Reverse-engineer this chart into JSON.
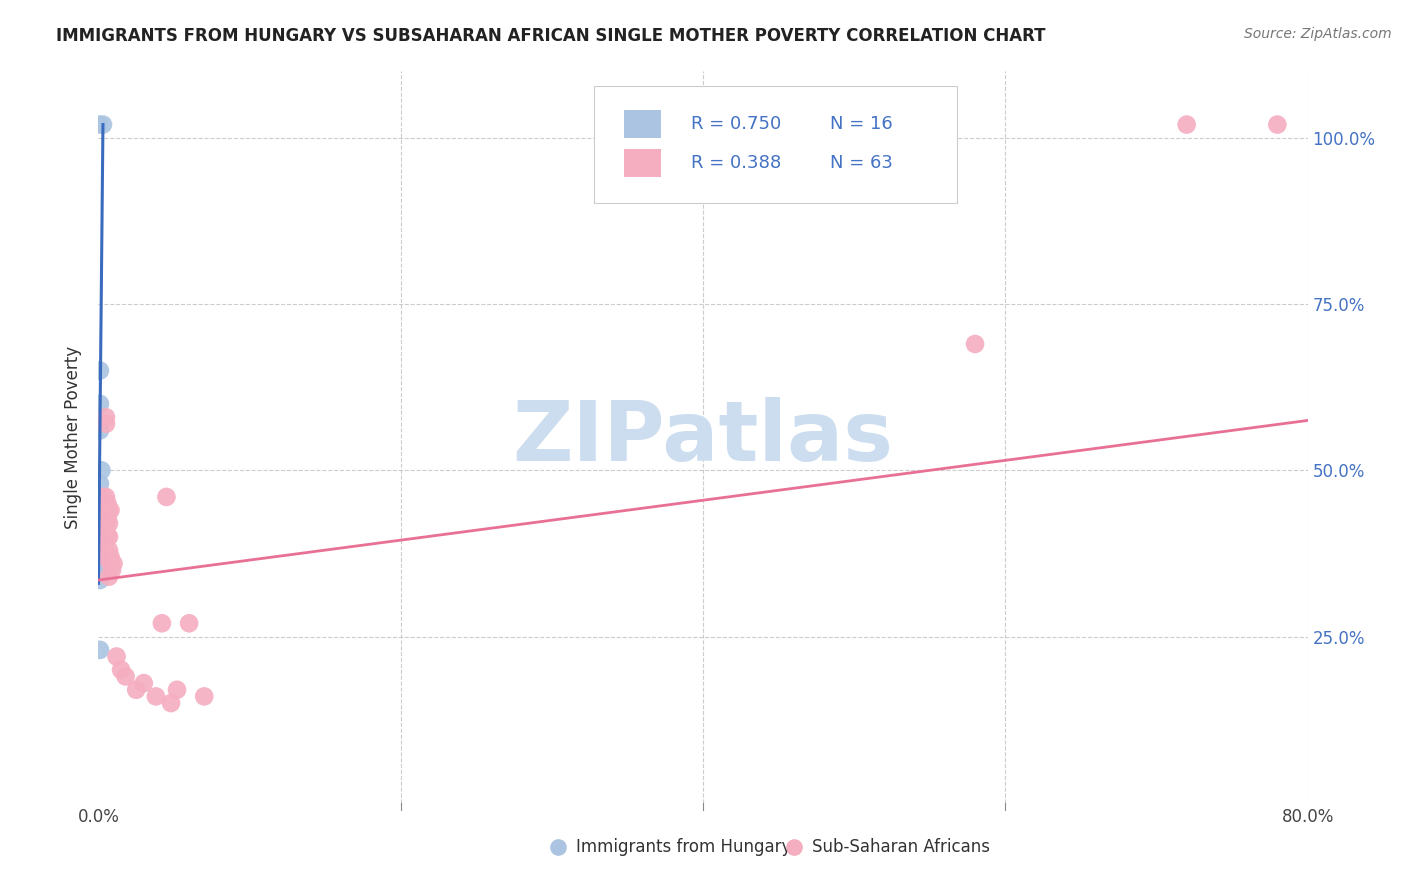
{
  "title": "IMMIGRANTS FROM HUNGARY VS SUBSAHARAN AFRICAN SINGLE MOTHER POVERTY CORRELATION CHART",
  "source": "Source: ZipAtlas.com",
  "ylabel": "Single Mother Poverty",
  "legend_label1": "Immigrants from Hungary",
  "legend_label2": "Sub-Saharan Africans",
  "R1": "0.750",
  "N1": "16",
  "R2": "0.388",
  "N2": "63",
  "color_blue": "#aac4e2",
  "color_pink": "#f5adc0",
  "line_blue": "#3a6bbf",
  "line_pink": "#e87095",
  "text_blue": "#4472c4",
  "blue_scatter_x": [
    0.0,
    0.003,
    0.001,
    0.001,
    0.001,
    0.002,
    0.001,
    0.001,
    0.001,
    0.001,
    0.0,
    0.001,
    0.0,
    0.001,
    0.001,
    0.001
  ],
  "blue_scatter_y": [
    1.02,
    1.02,
    0.65,
    0.6,
    0.56,
    0.5,
    0.48,
    0.46,
    0.43,
    0.4,
    0.375,
    0.365,
    0.355,
    0.345,
    0.335,
    0.23
  ],
  "pink_scatter_x": [
    0.001,
    0.002,
    0.002,
    0.001,
    0.003,
    0.003,
    0.002,
    0.002,
    0.003,
    0.004,
    0.003,
    0.004,
    0.004,
    0.003,
    0.002,
    0.002,
    0.003,
    0.004,
    0.004,
    0.005,
    0.005,
    0.004,
    0.003,
    0.003,
    0.002,
    0.003,
    0.004,
    0.005,
    0.005,
    0.004,
    0.005,
    0.006,
    0.006,
    0.005,
    0.004,
    0.005,
    0.006,
    0.006,
    0.007,
    0.007,
    0.007,
    0.007,
    0.008,
    0.008,
    0.007,
    0.008,
    0.009,
    0.01,
    0.012,
    0.015,
    0.018,
    0.025,
    0.03,
    0.038,
    0.042,
    0.045,
    0.048,
    0.052,
    0.06,
    0.07,
    0.58,
    0.72,
    0.78
  ],
  "pink_scatter_y": [
    0.45,
    0.44,
    0.43,
    0.42,
    0.46,
    0.44,
    0.41,
    0.4,
    0.43,
    0.42,
    0.4,
    0.39,
    0.44,
    0.43,
    0.39,
    0.38,
    0.42,
    0.43,
    0.41,
    0.57,
    0.58,
    0.45,
    0.44,
    0.43,
    0.41,
    0.42,
    0.43,
    0.44,
    0.46,
    0.42,
    0.43,
    0.45,
    0.44,
    0.42,
    0.39,
    0.37,
    0.43,
    0.4,
    0.44,
    0.42,
    0.38,
    0.4,
    0.44,
    0.37,
    0.34,
    0.36,
    0.35,
    0.36,
    0.22,
    0.2,
    0.19,
    0.17,
    0.18,
    0.16,
    0.27,
    0.46,
    0.15,
    0.17,
    0.27,
    0.16,
    0.69,
    1.02,
    1.02
  ],
  "xlim_min": 0.0,
  "xlim_max": 0.8,
  "ylim_min": 0.0,
  "ylim_max": 1.1,
  "ytick_vals": [
    0.25,
    0.5,
    0.75,
    1.0
  ],
  "ytick_labels": [
    "25.0%",
    "50.0%",
    "75.0%",
    "100.0%"
  ],
  "xtick_vals": [
    0.0,
    0.2,
    0.4,
    0.6,
    0.8
  ],
  "grid_color": "#cccccc",
  "watermark": "ZIPatlas",
  "watermark_color": "#ccddf0",
  "background_color": "#ffffff"
}
